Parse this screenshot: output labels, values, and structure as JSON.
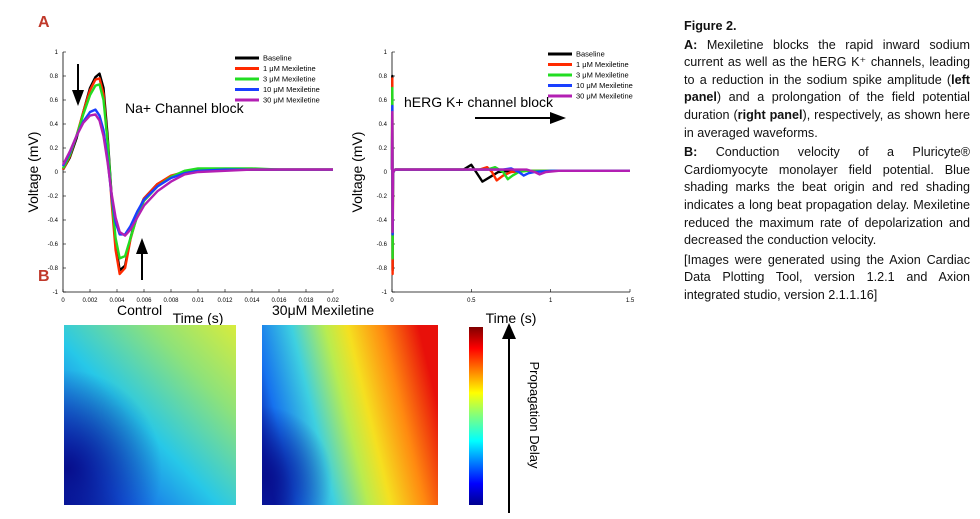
{
  "panels": {
    "a_label": "A",
    "b_label": "B"
  },
  "chart_data": [
    {
      "type": "line",
      "annotation": "Na+ Channel block",
      "xlabel": "Time (s)",
      "ylabel": "Voltage (mV)",
      "xlim": [
        0,
        0.02
      ],
      "ylim": [
        -1,
        1
      ],
      "xticks": [
        "0",
        "0.002",
        "0.004",
        "0.006",
        "0.008",
        "0.01",
        "0.012",
        "0.014",
        "0.016",
        "0.018",
        "0.02"
      ],
      "yticks": [
        "-1",
        "-0.8",
        "-0.6",
        "-0.4",
        "-0.2",
        "0",
        "0.2",
        "0.4",
        "0.6",
        "0.8",
        "1"
      ],
      "legend": "top-right",
      "series": [
        {
          "name": "Baseline",
          "color": "#000000",
          "x": [
            0,
            0.0005,
            0.001,
            0.0015,
            0.002,
            0.0024,
            0.0027,
            0.003,
            0.0033,
            0.0036,
            0.0039,
            0.0042,
            0.0046,
            0.005,
            0.0055,
            0.006,
            0.007,
            0.008,
            0.009,
            0.01,
            0.012,
            0.014,
            0.016,
            0.018,
            0.02
          ],
          "y": [
            0.02,
            0.12,
            0.28,
            0.5,
            0.7,
            0.79,
            0.82,
            0.7,
            0.3,
            -0.2,
            -0.6,
            -0.82,
            -0.78,
            -0.55,
            -0.35,
            -0.22,
            -0.1,
            -0.04,
            0.0,
            0.01,
            0.02,
            0.02,
            0.02,
            0.02,
            0.02
          ]
        },
        {
          "name": "1 μM Mexiletine",
          "color": "#ff2a00",
          "x": [
            0,
            0.0005,
            0.001,
            0.0015,
            0.002,
            0.0024,
            0.0027,
            0.003,
            0.0033,
            0.0036,
            0.0039,
            0.0042,
            0.0046,
            0.005,
            0.0055,
            0.006,
            0.007,
            0.008,
            0.009,
            0.01,
            0.012,
            0.014,
            0.016,
            0.018,
            0.02
          ],
          "y": [
            0.02,
            0.13,
            0.3,
            0.5,
            0.68,
            0.77,
            0.78,
            0.65,
            0.25,
            -0.25,
            -0.65,
            -0.85,
            -0.8,
            -0.56,
            -0.36,
            -0.22,
            -0.1,
            -0.03,
            0.0,
            0.02,
            0.02,
            0.02,
            0.02,
            0.02,
            0.02
          ]
        },
        {
          "name": "3 μM Mexiletine",
          "color": "#22dd22",
          "x": [
            0,
            0.0005,
            0.001,
            0.0015,
            0.002,
            0.0024,
            0.0027,
            0.003,
            0.0033,
            0.0036,
            0.0039,
            0.0042,
            0.0046,
            0.005,
            0.0055,
            0.006,
            0.007,
            0.008,
            0.009,
            0.01,
            0.012,
            0.014,
            0.016,
            0.018,
            0.02
          ],
          "y": [
            0.03,
            0.14,
            0.3,
            0.48,
            0.64,
            0.72,
            0.73,
            0.6,
            0.25,
            -0.2,
            -0.55,
            -0.72,
            -0.7,
            -0.55,
            -0.37,
            -0.24,
            -0.12,
            -0.04,
            0.01,
            0.03,
            0.03,
            0.03,
            0.02,
            0.02,
            0.02
          ]
        },
        {
          "name": "10 μM Mexiletine",
          "color": "#1a3fff",
          "x": [
            0,
            0.0005,
            0.001,
            0.0015,
            0.002,
            0.0024,
            0.0027,
            0.003,
            0.0033,
            0.0036,
            0.0039,
            0.0042,
            0.0046,
            0.005,
            0.0055,
            0.006,
            0.007,
            0.008,
            0.009,
            0.01,
            0.012,
            0.014,
            0.016,
            0.018,
            0.02
          ],
          "y": [
            0.05,
            0.16,
            0.3,
            0.42,
            0.5,
            0.52,
            0.47,
            0.35,
            0.1,
            -0.2,
            -0.42,
            -0.52,
            -0.52,
            -0.45,
            -0.33,
            -0.23,
            -0.12,
            -0.05,
            -0.01,
            0.01,
            0.02,
            0.02,
            0.02,
            0.02,
            0.02
          ]
        },
        {
          "name": "30 μM Mexiletine",
          "color": "#b31fb3",
          "x": [
            0,
            0.0005,
            0.001,
            0.0015,
            0.002,
            0.0024,
            0.0027,
            0.003,
            0.0033,
            0.0036,
            0.0039,
            0.0042,
            0.0046,
            0.005,
            0.0055,
            0.006,
            0.007,
            0.008,
            0.009,
            0.01,
            0.012,
            0.014,
            0.016,
            0.018,
            0.02
          ],
          "y": [
            0.06,
            0.17,
            0.3,
            0.41,
            0.47,
            0.48,
            0.43,
            0.3,
            0.08,
            -0.18,
            -0.38,
            -0.5,
            -0.53,
            -0.48,
            -0.38,
            -0.28,
            -0.16,
            -0.08,
            -0.02,
            0.0,
            0.01,
            0.02,
            0.02,
            0.02,
            0.02
          ]
        }
      ]
    },
    {
      "type": "line",
      "annotation": "hERG K+ channel block",
      "xlabel": "Time (s)",
      "ylabel": "Voltage (mV)",
      "xlim": [
        0,
        1.5
      ],
      "ylim": [
        -1,
        1
      ],
      "xticks": [
        "0",
        "0.5",
        "1",
        "1.5"
      ],
      "yticks": [
        "-1",
        "-0.8",
        "-0.6",
        "-0.4",
        "-0.2",
        "0",
        "0.2",
        "0.4",
        "0.6",
        "0.8",
        "1"
      ],
      "legend": "top-right",
      "series": [
        {
          "name": "Baseline",
          "color": "#000000",
          "x": [
            0,
            0.002,
            0.004,
            0.006,
            0.02,
            0.1,
            0.2,
            0.3,
            0.4,
            0.45,
            0.5,
            0.53,
            0.57,
            0.62,
            0.67,
            0.75,
            0.85,
            1.0,
            1.2,
            1.5
          ],
          "y": [
            0.02,
            0.8,
            -0.82,
            0.0,
            0.02,
            0.02,
            0.02,
            0.02,
            0.02,
            0.02,
            0.06,
            0.0,
            -0.08,
            -0.04,
            0.0,
            0.01,
            0.01,
            0.01,
            0.01,
            0.01
          ]
        },
        {
          "name": "1 μM Mexiletine",
          "color": "#ff2a00",
          "x": [
            0,
            0.002,
            0.004,
            0.006,
            0.02,
            0.1,
            0.2,
            0.3,
            0.4,
            0.5,
            0.55,
            0.6,
            0.63,
            0.66,
            0.7,
            0.75,
            0.85,
            1.0,
            1.2,
            1.5
          ],
          "y": [
            0.02,
            0.78,
            -0.85,
            0.0,
            0.02,
            0.02,
            0.02,
            0.02,
            0.02,
            0.02,
            0.02,
            0.04,
            0.0,
            -0.07,
            -0.03,
            0.0,
            0.01,
            0.01,
            0.01,
            0.01
          ]
        },
        {
          "name": "3 μM Mexiletine",
          "color": "#22dd22",
          "x": [
            0,
            0.002,
            0.004,
            0.006,
            0.02,
            0.1,
            0.2,
            0.3,
            0.4,
            0.5,
            0.6,
            0.65,
            0.7,
            0.73,
            0.76,
            0.8,
            0.85,
            1.0,
            1.2,
            1.5
          ],
          "y": [
            0.02,
            0.7,
            -0.72,
            0.0,
            0.02,
            0.02,
            0.02,
            0.02,
            0.02,
            0.02,
            0.02,
            0.04,
            0.0,
            -0.06,
            -0.03,
            0.0,
            0.01,
            0.01,
            0.01,
            0.01
          ]
        },
        {
          "name": "10 μM Mexiletine",
          "color": "#1a3fff",
          "x": [
            0,
            0.002,
            0.004,
            0.006,
            0.02,
            0.1,
            0.2,
            0.3,
            0.4,
            0.5,
            0.6,
            0.7,
            0.75,
            0.8,
            0.83,
            0.86,
            0.9,
            1.0,
            1.2,
            1.5
          ],
          "y": [
            0.02,
            0.55,
            -0.52,
            0.0,
            0.02,
            0.02,
            0.02,
            0.02,
            0.02,
            0.02,
            0.02,
            0.02,
            0.03,
            0.0,
            -0.03,
            -0.01,
            0.0,
            0.01,
            0.01,
            0.01
          ]
        },
        {
          "name": "30 μM Mexiletine",
          "color": "#b31fb3",
          "x": [
            0,
            0.002,
            0.004,
            0.006,
            0.02,
            0.1,
            0.2,
            0.3,
            0.4,
            0.5,
            0.6,
            0.7,
            0.8,
            0.85,
            0.9,
            0.93,
            0.97,
            1.05,
            1.2,
            1.5
          ],
          "y": [
            0.02,
            0.5,
            -0.5,
            0.0,
            0.02,
            0.02,
            0.02,
            0.02,
            0.02,
            0.02,
            0.02,
            0.02,
            0.02,
            0.02,
            0.0,
            -0.02,
            0.0,
            0.01,
            0.01,
            0.01
          ]
        }
      ]
    }
  ],
  "maps": {
    "control_label": "Control",
    "mexiletine_label": "30μM Mexiletine",
    "colorbar_label": "Propagation Delay"
  },
  "caption": {
    "title": "Figure 2.",
    "a_prefix": "A:",
    "a_text_1": "Mexiletine blocks the rapid inward sodium current as well as the hERG K⁺ channels, leading to a reduction in the sodium spike amplitude (",
    "a_bold_1": "left panel",
    "a_text_2": ") and a prolongation of the field potential duration (",
    "a_bold_2": "right panel",
    "a_text_3": "), respectively, as shown here in averaged waveforms.",
    "b_prefix": "B:",
    "b_text": "Conduction velocity of a Pluricyte® Cardiomyocyte monolayer field potential. Blue shading marks the beat origin and red shading indicates a long beat propagation delay. Mexiletine reduced the maximum rate of depolarization and decreased the conduction velocity.",
    "note": "[Images were generated using the Axion Cardiac Data Plotting Tool, version 1.2.1 and Axion integrated studio, version 2.1.1.16]"
  }
}
